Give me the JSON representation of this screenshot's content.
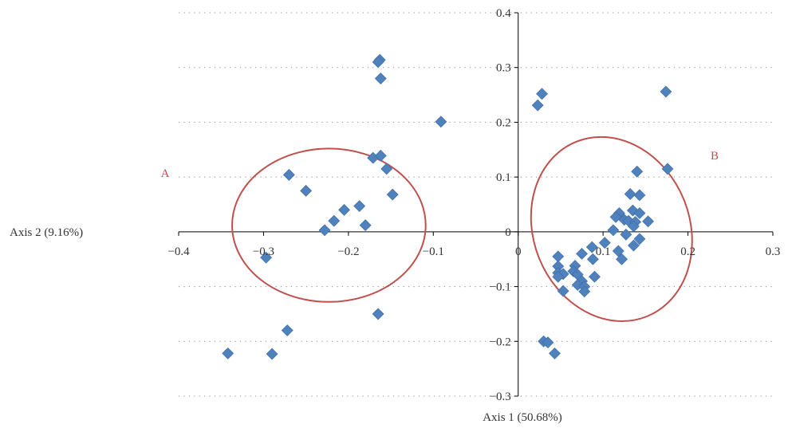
{
  "chart_data": {
    "type": "scatter",
    "xlabel": "Axis 1 (50.68%)",
    "ylabel": "Axis 2 (9.16%)",
    "xlim": [
      -0.4,
      0.3
    ],
    "ylim": [
      -0.3,
      0.4
    ],
    "x_ticks": [
      "−0.4",
      "−0.3",
      "−0.2",
      "−0.1",
      "0",
      "0.1",
      "0.2",
      "0.3"
    ],
    "y_ticks": [
      "0.4",
      "0.3",
      "0.2",
      "0.1",
      "0",
      "−0.1",
      "−0.2",
      "−0.3"
    ],
    "grid": "dotted horizontal",
    "marker_color": "#4f81bd",
    "series": [
      {
        "points": [
          [
            -0.163,
            0.314
          ],
          [
            -0.165,
            0.31
          ],
          [
            -0.162,
            0.28
          ],
          [
            -0.091,
            0.201
          ],
          [
            -0.171,
            0.135
          ],
          [
            -0.162,
            0.139
          ],
          [
            -0.155,
            0.115
          ],
          [
            -0.148,
            0.068
          ],
          [
            -0.27,
            0.104
          ],
          [
            -0.25,
            0.075
          ],
          [
            -0.187,
            0.047
          ],
          [
            -0.205,
            0.04
          ],
          [
            -0.217,
            0.02
          ],
          [
            -0.228,
            0.003
          ],
          [
            -0.18,
            0.012
          ],
          [
            -0.297,
            -0.047
          ],
          [
            -0.165,
            -0.15
          ],
          [
            -0.272,
            -0.18
          ],
          [
            -0.342,
            -0.222
          ],
          [
            -0.29,
            -0.223
          ],
          [
            0.028,
            0.252
          ],
          [
            0.023,
            0.231
          ],
          [
            0.174,
            0.256
          ],
          [
            0.176,
            0.115
          ],
          [
            0.14,
            0.11
          ],
          [
            0.132,
            0.069
          ],
          [
            0.143,
            0.067
          ],
          [
            0.135,
            0.039
          ],
          [
            0.143,
            0.034
          ],
          [
            0.119,
            0.034
          ],
          [
            0.115,
            0.027
          ],
          [
            0.125,
            0.022
          ],
          [
            0.13,
            0.02
          ],
          [
            0.138,
            0.018
          ],
          [
            0.153,
            0.019
          ],
          [
            0.136,
            0.01
          ],
          [
            0.112,
            0.003
          ],
          [
            0.127,
            -0.005
          ],
          [
            0.143,
            -0.013
          ],
          [
            0.102,
            -0.02
          ],
          [
            0.136,
            -0.025
          ],
          [
            0.118,
            -0.035
          ],
          [
            0.087,
            -0.028
          ],
          [
            0.075,
            -0.04
          ],
          [
            0.047,
            -0.045
          ],
          [
            0.122,
            -0.05
          ],
          [
            0.088,
            -0.05
          ],
          [
            0.067,
            -0.062
          ],
          [
            0.047,
            -0.063
          ],
          [
            0.065,
            -0.072
          ],
          [
            0.047,
            -0.075
          ],
          [
            0.053,
            -0.077
          ],
          [
            0.07,
            -0.078
          ],
          [
            0.047,
            -0.082
          ],
          [
            0.09,
            -0.082
          ],
          [
            0.075,
            -0.09
          ],
          [
            0.07,
            -0.097
          ],
          [
            0.078,
            -0.1
          ],
          [
            0.053,
            -0.108
          ],
          [
            0.078,
            -0.109
          ],
          [
            0.03,
            -0.2
          ],
          [
            0.035,
            -0.202
          ],
          [
            0.043,
            -0.222
          ]
        ]
      }
    ],
    "clusters": [
      {
        "label": "A",
        "color": "#c0504d",
        "cx": -0.223,
        "cy": 0.012,
        "rx": 0.114,
        "ry": 0.14
      },
      {
        "label": "B",
        "color": "#c0504d",
        "cx": 0.11,
        "cy": 0.005,
        "rx": 0.092,
        "ry": 0.172,
        "rotation_deg": -22
      }
    ]
  }
}
